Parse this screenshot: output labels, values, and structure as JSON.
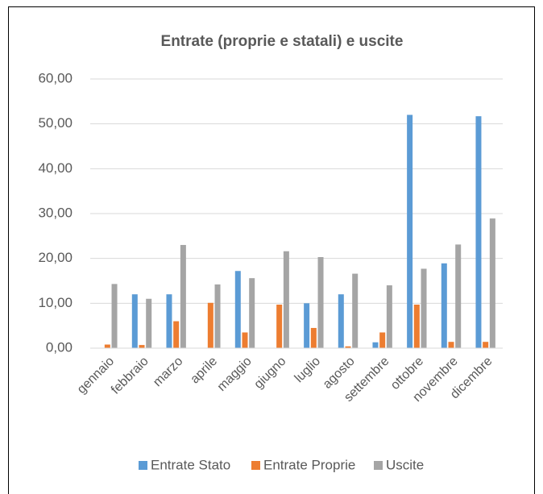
{
  "chart_data": {
    "type": "bar",
    "title": "Entrate (proprie e statali) e uscite",
    "categories": [
      "gennaio",
      "febbraio",
      "marzo",
      "aprile",
      "maggio",
      "giugno",
      "luglio",
      "agosto",
      "settembre",
      "ottobre",
      "novembre",
      "dicembre"
    ],
    "series": [
      {
        "name": "Entrate Stato",
        "color": "#5b9bd5",
        "values": [
          0,
          12.0,
          12.0,
          0,
          17.2,
          0,
          10.0,
          12.0,
          1.3,
          52.0,
          18.9,
          51.7
        ]
      },
      {
        "name": "Entrate Proprie",
        "color": "#ed7d31",
        "values": [
          0.8,
          0.7,
          6.0,
          10.1,
          3.5,
          9.7,
          4.5,
          0.4,
          3.5,
          9.7,
          1.4,
          1.4
        ]
      },
      {
        "name": "Uscite",
        "color": "#a5a5a5",
        "values": [
          14.3,
          11.0,
          23.0,
          14.2,
          15.6,
          21.6,
          20.3,
          16.6,
          14.0,
          17.7,
          23.1,
          28.9
        ]
      }
    ],
    "ylim": [
      0,
      60
    ],
    "yticks": [
      {
        "value": 0,
        "label": "0,00"
      },
      {
        "value": 10,
        "label": "10,00"
      },
      {
        "value": 20,
        "label": "20,00"
      },
      {
        "value": 30,
        "label": "30,00"
      },
      {
        "value": 40,
        "label": "40,00"
      },
      {
        "value": 50,
        "label": "50,00"
      },
      {
        "value": 60,
        "label": "60,00"
      }
    ],
    "grid": true,
    "legend": "bottom"
  }
}
